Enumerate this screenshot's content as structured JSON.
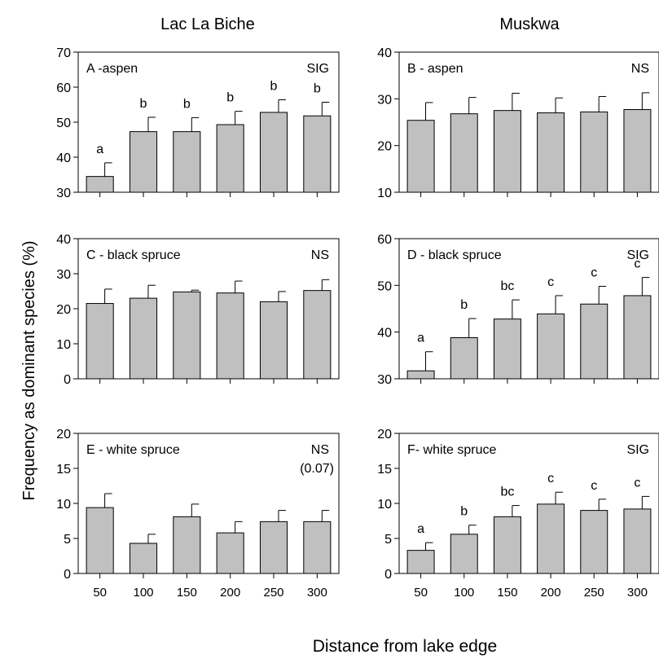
{
  "column_titles": [
    "Lac La Biche",
    "Muskwa"
  ],
  "ylabel": "Frequency as dominant species (%)",
  "xlabel": "Distance from lake edge",
  "chart_data": [
    {
      "type": "bar",
      "panel_label": "A -aspen",
      "significance": "SIG",
      "categories": [
        "50",
        "100",
        "150",
        "200",
        "250",
        "300"
      ],
      "values": [
        34.5,
        47.3,
        47.3,
        49.3,
        52.8,
        51.8
      ],
      "errors": [
        3.9,
        4.1,
        4.0,
        3.8,
        3.6,
        3.9
      ],
      "letters": [
        "a",
        "b",
        "b",
        "b",
        "b",
        "b"
      ],
      "ylim": [
        30,
        70
      ],
      "yticks": [
        30,
        40,
        50,
        60,
        70
      ]
    },
    {
      "type": "bar",
      "panel_label": "B - aspen",
      "significance": "NS",
      "categories": [
        "50",
        "100",
        "150",
        "200",
        "250",
        "300"
      ],
      "values": [
        25.4,
        26.8,
        27.5,
        27.0,
        27.2,
        27.7
      ],
      "errors": [
        3.8,
        3.5,
        3.7,
        3.2,
        3.3,
        3.6
      ],
      "letters": [
        "",
        "",
        "",
        "",
        "",
        ""
      ],
      "ylim": [
        10,
        40
      ],
      "yticks": [
        10,
        20,
        30,
        40
      ]
    },
    {
      "type": "bar",
      "panel_label": "C - black spruce",
      "significance": "NS",
      "categories": [
        "50",
        "100",
        "150",
        "200",
        "250",
        "300"
      ],
      "values": [
        21.5,
        23.0,
        24.8,
        24.5,
        22.0,
        25.2
      ],
      "errors": [
        4.1,
        3.7,
        0.5,
        3.4,
        2.9,
        3.1
      ],
      "letters": [
        "",
        "",
        "",
        "",
        "",
        ""
      ],
      "ylim": [
        0,
        40
      ],
      "yticks": [
        0,
        10,
        20,
        30,
        40
      ]
    },
    {
      "type": "bar",
      "panel_label": "D - black spruce",
      "significance": "SIG",
      "categories": [
        "50",
        "100",
        "150",
        "200",
        "250",
        "300"
      ],
      "values": [
        31.7,
        38.8,
        42.8,
        43.9,
        46.0,
        47.8
      ],
      "errors": [
        4.1,
        4.1,
        4.1,
        3.9,
        3.8,
        3.9
      ],
      "letters": [
        "a",
        "b",
        "bc",
        "c",
        "c",
        "c"
      ],
      "ylim": [
        30,
        60
      ],
      "yticks": [
        30,
        40,
        50,
        60
      ]
    },
    {
      "type": "bar",
      "panel_label": "E - white spruce",
      "significance": "NS",
      "significance_note": "(0.07)",
      "categories": [
        "50",
        "100",
        "150",
        "200",
        "250",
        "300"
      ],
      "values": [
        9.4,
        4.3,
        8.1,
        5.8,
        7.4,
        7.4
      ],
      "errors": [
        2.0,
        1.3,
        1.8,
        1.6,
        1.6,
        1.6
      ],
      "letters": [
        "",
        "",
        "",
        "",
        "",
        ""
      ],
      "ylim": [
        0,
        20
      ],
      "yticks": [
        0,
        5,
        10,
        15,
        20
      ]
    },
    {
      "type": "bar",
      "panel_label": "F- white spruce",
      "significance": "SIG",
      "categories": [
        "50",
        "100",
        "150",
        "200",
        "250",
        "300"
      ],
      "values": [
        3.3,
        5.6,
        8.1,
        9.9,
        9.0,
        9.2
      ],
      "errors": [
        1.1,
        1.3,
        1.6,
        1.7,
        1.6,
        1.8
      ],
      "letters": [
        "a",
        "b",
        "bc",
        "c",
        "c",
        "c"
      ],
      "ylim": [
        0,
        20
      ],
      "yticks": [
        0,
        5,
        10,
        15,
        20
      ]
    }
  ]
}
